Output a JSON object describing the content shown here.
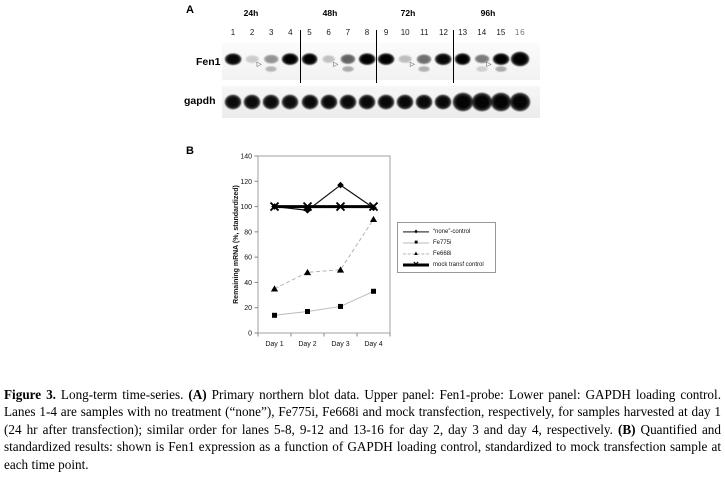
{
  "panel_a": {
    "label": "A",
    "time_labels": [
      "24h",
      "48h",
      "72h",
      "96h"
    ],
    "lane_numbers": [
      "1",
      "2",
      "3",
      "4",
      "5",
      "6",
      "7",
      "8",
      "9",
      "10",
      "11",
      "12",
      "13",
      "14",
      "15",
      "16"
    ],
    "fen1_label": "Fen1",
    "gapdh_label": "gapdh",
    "fen1_band_intensity": [
      0.92,
      0.12,
      0.35,
      0.95,
      0.95,
      0.16,
      0.55,
      0.95,
      0.97,
      0.18,
      0.5,
      0.92,
      0.95,
      0.45,
      0.95,
      1.0
    ],
    "fen1_sub_band_intensity": [
      0,
      0,
      0.25,
      0,
      0,
      0,
      0.3,
      0,
      0,
      0,
      0.28,
      0,
      0,
      0.15,
      0.3,
      0
    ],
    "gapdh_band_intensity": [
      0.95,
      0.95,
      0.95,
      0.95,
      0.96,
      0.96,
      0.96,
      0.96,
      0.96,
      0.96,
      0.96,
      0.96,
      0.98,
      0.98,
      0.98,
      0.98
    ],
    "arrow_lanes": [
      3,
      7,
      11,
      15
    ],
    "divider_after_lanes": [
      4,
      8,
      12
    ],
    "arrow_glyph": "▷"
  },
  "panel_b": {
    "label": "B"
  },
  "chart_data": {
    "type": "line",
    "categories": [
      "Day 1",
      "Day 2",
      "Day 3",
      "Day 4"
    ],
    "series": [
      {
        "name": "“none”-control",
        "values": [
          100,
          97,
          117,
          99
        ],
        "marker": "diamond",
        "line_style": "solid",
        "line_color": "#111111",
        "line_width": 1.2
      },
      {
        "name": "Fe775i",
        "values": [
          14,
          17,
          21,
          33
        ],
        "marker": "square",
        "line_style": "solid",
        "line_color": "#bbbbbb",
        "line_width": 1
      },
      {
        "name": "Fe668i",
        "values": [
          35,
          48,
          50,
          90
        ],
        "marker": "triangle",
        "line_style": "dashed",
        "line_color": "#b5b5b5",
        "line_width": 1
      },
      {
        "name": "mock transf control",
        "values": [
          100,
          100,
          100,
          100
        ],
        "marker": "x",
        "line_style": "solid",
        "line_color": "#000000",
        "line_width": 3
      }
    ],
    "title": "",
    "xlabel": "",
    "ylabel": "Remaining mRNA (%, standardized)",
    "ylim": [
      0,
      140
    ],
    "yticks": [
      0,
      20,
      40,
      60,
      80,
      100,
      120,
      140
    ],
    "grid": false,
    "legend_position": "right",
    "axis_color": "#a0a0a0"
  },
  "caption": {
    "segments": [
      {
        "text": "Figure 3.",
        "bold": true
      },
      {
        "text": " Long-term time-series. ",
        "bold": false
      },
      {
        "text": "(A)",
        "bold": true
      },
      {
        "text": " Primary northern blot data. Upper panel: Fen1-probe: Lower panel: GAPDH loading control. Lanes 1-4 are samples with no treatment (“none”), Fe775i, Fe668i and mock transfection, respectively, for samples harvested at day 1 (24 hr after transfection); similar order for lanes 5-8, 9-12 and 13-16 for day 2, day 3 and day 4, respectively. ",
        "bold": false
      },
      {
        "text": "(B)",
        "bold": true
      },
      {
        "text": " Quantified and standardized results: shown is Fen1 expression as a function of GAPDH loading control, standardized to mock transfection sample at each time point.",
        "bold": false
      }
    ]
  }
}
